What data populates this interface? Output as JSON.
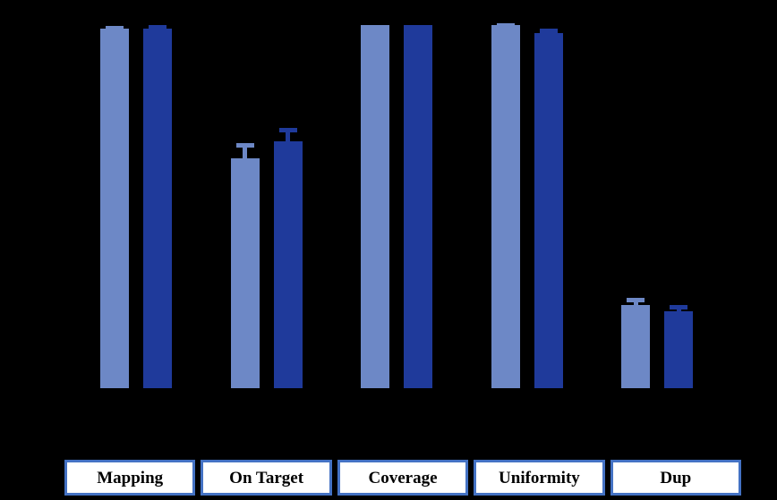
{
  "chart_data": {
    "type": "bar",
    "title": "",
    "xlabel": "",
    "ylabel": "",
    "ylim": [
      0,
      100
    ],
    "grid": false,
    "legend": "none",
    "background_color": "#000000",
    "categories": [
      "Mapping",
      "On Target",
      "Coverage",
      "Uniformity",
      "Dup"
    ],
    "series": [
      {
        "name": "light-blue-series",
        "color": "#6D88C6",
        "values": [
          99.1,
          63.3,
          100,
          100,
          22.8
        ],
        "errors_plus": [
          0.6,
          4.2,
          0,
          0.4,
          2.2
        ]
      },
      {
        "name": "dark-blue-series",
        "color": "#1F3A9B",
        "values": [
          99.1,
          67.9,
          100,
          97.7,
          21.2
        ],
        "errors_plus": [
          0.8,
          3.7,
          0,
          1.4,
          1.7
        ]
      }
    ],
    "category_box_style": {
      "fill": "#FFFFFF",
      "border": "#4472C4",
      "text_color": "#000000"
    }
  }
}
